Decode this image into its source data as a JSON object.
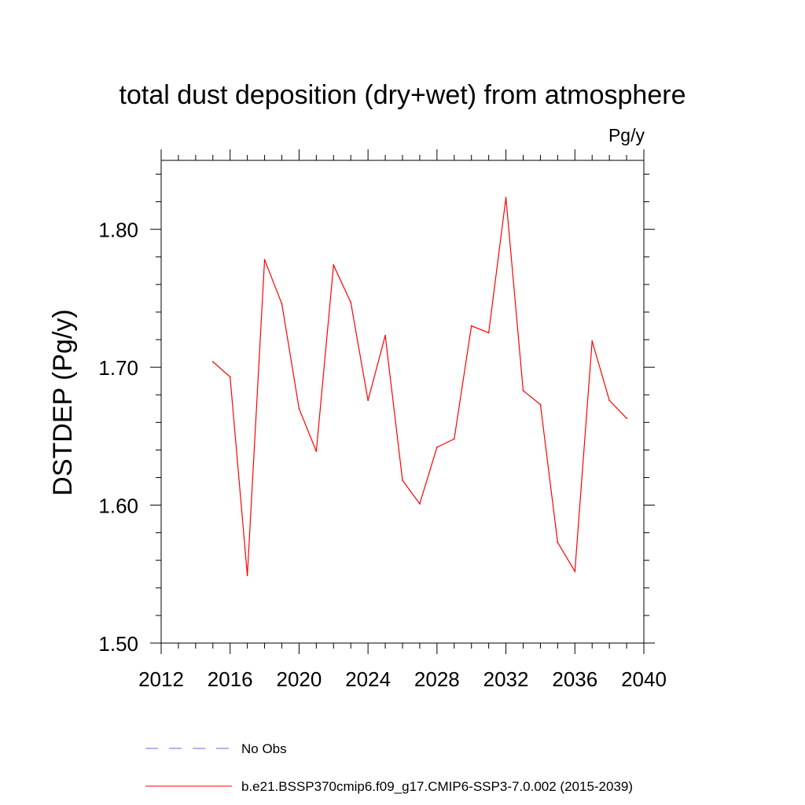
{
  "chart_data": {
    "type": "line",
    "title": "total dust deposition (dry+wet) from atmosphere",
    "units": "Pg/y",
    "ylabel": "DSTDEP  (Pg/y)",
    "xlabel": "",
    "xlim": [
      2012,
      2040
    ],
    "ylim": [
      1.5,
      1.85
    ],
    "xticks": [
      2012,
      2016,
      2020,
      2024,
      2028,
      2032,
      2036,
      2040
    ],
    "xtick_labels": [
      "2012",
      "2016",
      "2020",
      "2024",
      "2028",
      "2032",
      "2036",
      "2040"
    ],
    "yticks": [
      1.5,
      1.6,
      1.7,
      1.8
    ],
    "ytick_labels": [
      "1.50",
      "1.60",
      "1.70",
      "1.80"
    ],
    "x_minor_step": 1,
    "y_minor_step": 0.02,
    "grid": false,
    "legend_position": "bottom",
    "series": [
      {
        "name": "b.e21.BSSP370cmip6.f09_g17.CMIP6-SSP3-7.0.002 (2015-2039)",
        "color": "#ff0000",
        "dash": "solid",
        "x": [
          2015,
          2016,
          2017,
          2018,
          2019,
          2020,
          2021,
          2022,
          2023,
          2024,
          2025,
          2026,
          2027,
          2028,
          2029,
          2030,
          2031,
          2032,
          2033,
          2034,
          2035,
          2036,
          2037,
          2038,
          2039
        ],
        "values": [
          1.704,
          1.693,
          1.549,
          1.778,
          1.746,
          1.67,
          1.639,
          1.774,
          1.747,
          1.676,
          1.723,
          1.618,
          1.601,
          1.642,
          1.648,
          1.73,
          1.725,
          1.823,
          1.683,
          1.673,
          1.573,
          1.552,
          1.719,
          1.676,
          1.663
        ]
      }
    ],
    "legend": [
      {
        "label": "No Obs",
        "color": "#6a6ad8",
        "dash": "dashed"
      },
      {
        "label": "b.e21.BSSP370cmip6.f09_g17.CMIP6-SSP3-7.0.002 (2015-2039)",
        "color": "#ff0000",
        "dash": "solid"
      }
    ]
  }
}
